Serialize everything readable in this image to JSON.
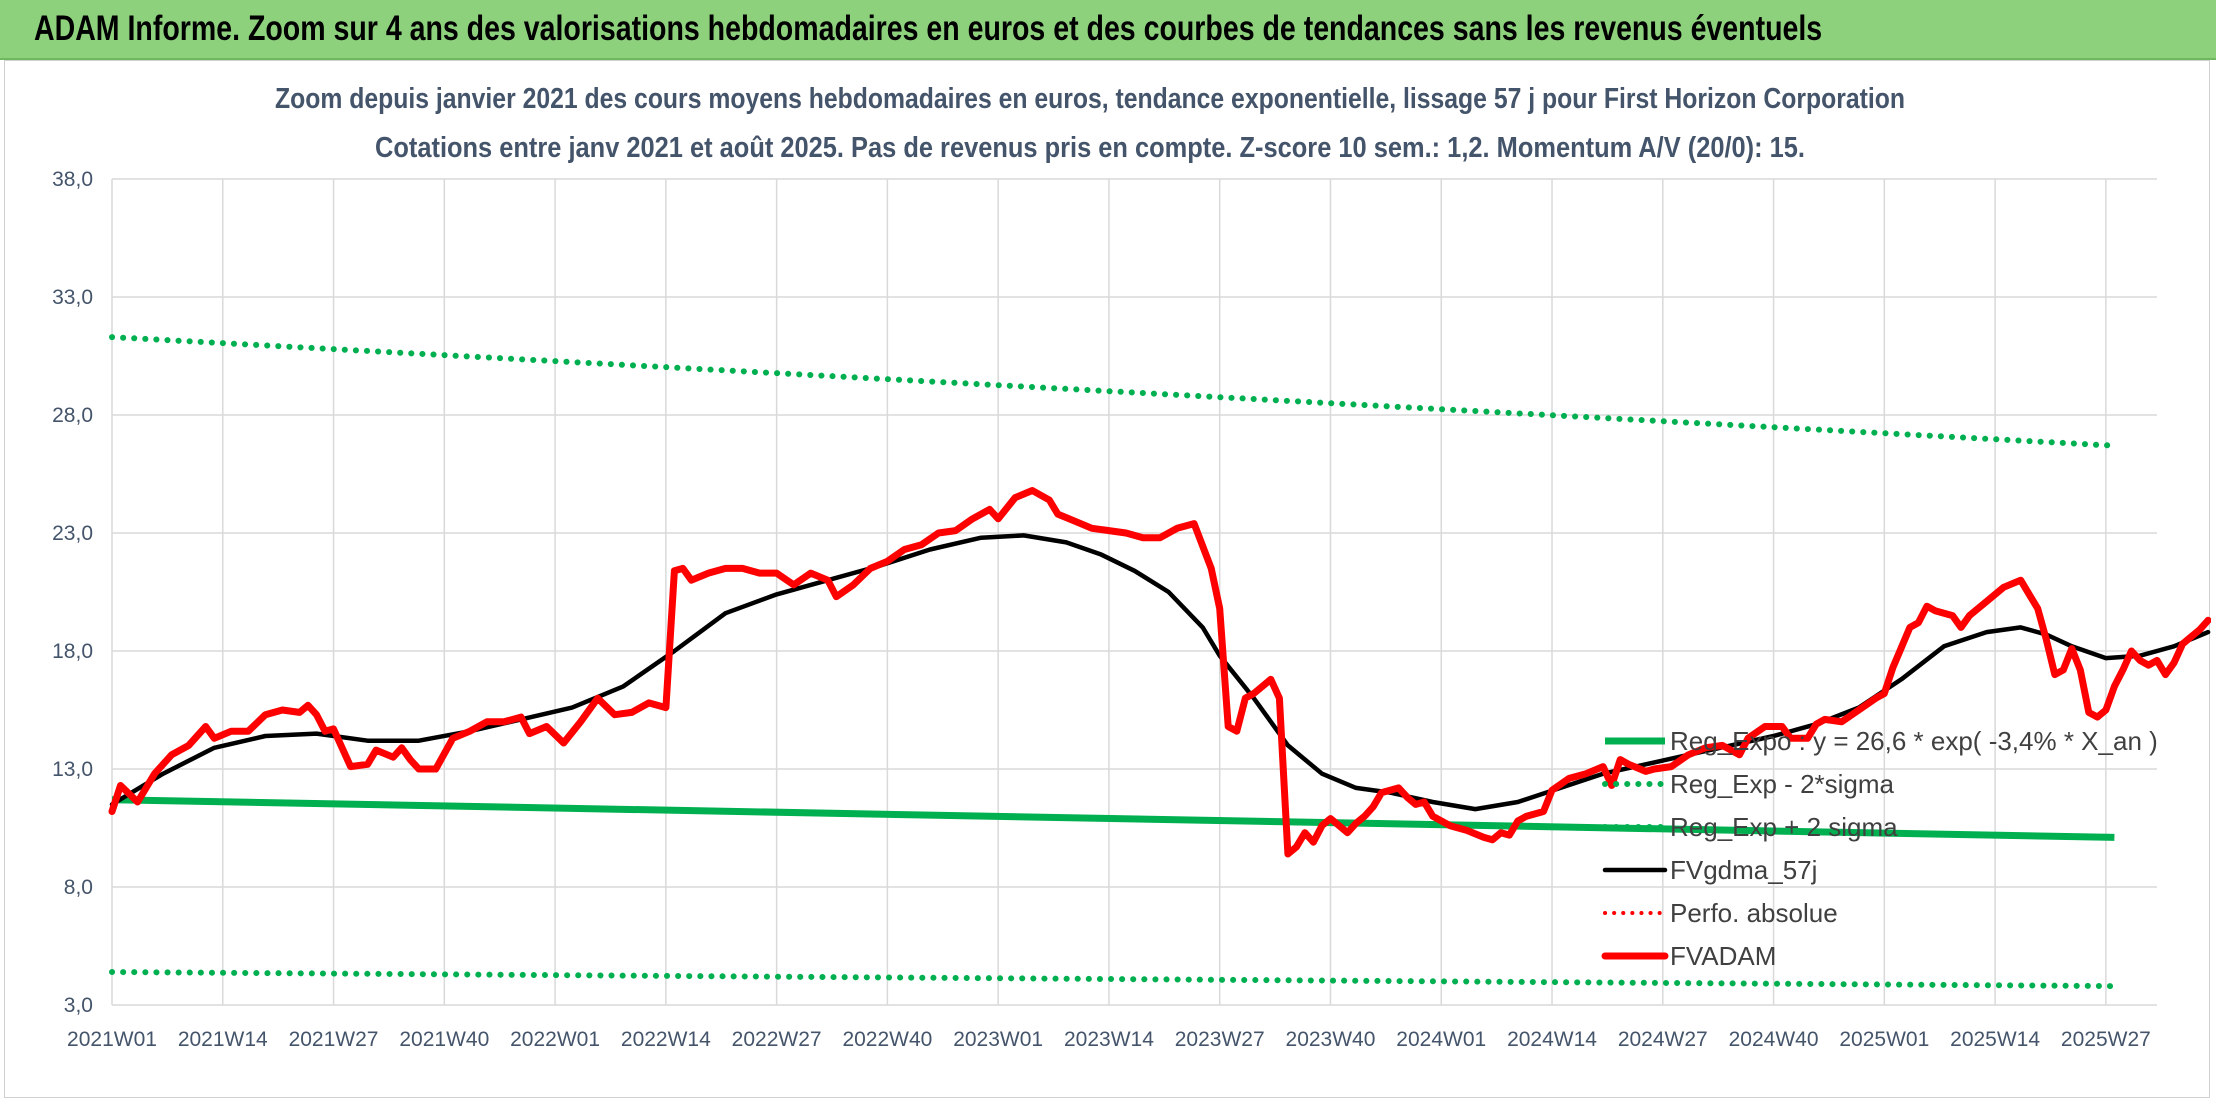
{
  "banner": {
    "title": "ADAM Informe. Zoom sur 4 ans des valorisations hebdomadaires en euros et des courbes de tendances sans les revenus éventuels"
  },
  "chart_data": {
    "type": "line",
    "title": "Zoom depuis janvier 2021 des cours moyens hebdomadaires en euros, tendance exponentielle, lissage 57 j pour First Horizon Corporation",
    "subtitle": "Cotations entre janv 2021 et août 2025. Pas de revenus pris en compte. Z-score 10 sem.: 1,2. Momentum A/V (20/0): 15.",
    "xlabel": "",
    "ylabel": "",
    "ylim": [
      3,
      38
    ],
    "ytick_labels": [
      "3,0",
      "8,0",
      "13,0",
      "18,0",
      "23,0",
      "28,0",
      "33,0",
      "38,0"
    ],
    "xtick_labels": [
      "2021W01",
      "2021W14",
      "2021W27",
      "2021W40",
      "2022W01",
      "2022W14",
      "2022W27",
      "2022W40",
      "2023W01",
      "2023W14",
      "2023W27",
      "2023W40",
      "2024W01",
      "2024W14",
      "2024W27",
      "2024W40",
      "2025W01",
      "2025W14",
      "2025W27"
    ],
    "grid": true,
    "legend_position": "bottom-right",
    "colors": {
      "reg_exp": "#00b050",
      "sigma": "#00b050",
      "fvgdma": "#000000",
      "perfo": "#ff0000",
      "fvadam": "#ff0000",
      "grid": "#d9d9d9",
      "text": "#44546a"
    },
    "series": [
      {
        "name": "Reg_Expo : y = 26,6 * exp( -3,4% *  X_an )",
        "style": "solid",
        "points": [
          [
            0,
            11.7
          ],
          [
            235,
            10.1
          ]
        ]
      },
      {
        "name": "Reg_Exp - 2*sigma",
        "style": "dotted",
        "points": [
          [
            0,
            4.4
          ],
          [
            235,
            3.8
          ]
        ]
      },
      {
        "name": "Reg_Exp + 2 sigma",
        "style": "dotted",
        "points": [
          [
            0,
            31.3
          ],
          [
            235,
            26.7
          ]
        ]
      },
      {
        "name": "FVgdma_57j",
        "style": "solid",
        "points": [
          [
            0,
            11.5
          ],
          [
            6,
            12.8
          ],
          [
            12,
            13.9
          ],
          [
            18,
            14.4
          ],
          [
            24,
            14.5
          ],
          [
            30,
            14.2
          ],
          [
            36,
            14.2
          ],
          [
            42,
            14.6
          ],
          [
            48,
            15.1
          ],
          [
            54,
            15.6
          ],
          [
            60,
            16.5
          ],
          [
            66,
            18.0
          ],
          [
            72,
            19.6
          ],
          [
            78,
            20.4
          ],
          [
            84,
            21.0
          ],
          [
            90,
            21.6
          ],
          [
            96,
            22.3
          ],
          [
            102,
            22.8
          ],
          [
            107,
            22.9
          ],
          [
            112,
            22.6
          ],
          [
            116,
            22.1
          ],
          [
            120,
            21.4
          ],
          [
            124,
            20.5
          ],
          [
            128,
            19.0
          ],
          [
            130,
            17.8
          ],
          [
            134,
            16.0
          ],
          [
            138,
            14.0
          ],
          [
            142,
            12.8
          ],
          [
            146,
            12.2
          ],
          [
            150,
            12.0
          ],
          [
            155,
            11.6
          ],
          [
            160,
            11.3
          ],
          [
            165,
            11.6
          ],
          [
            170,
            12.2
          ],
          [
            175,
            12.8
          ],
          [
            180,
            13.2
          ],
          [
            185,
            13.6
          ],
          [
            190,
            14.0
          ],
          [
            195,
            14.4
          ],
          [
            200,
            14.9
          ],
          [
            205,
            15.6
          ],
          [
            210,
            16.8
          ],
          [
            215,
            18.2
          ],
          [
            220,
            18.8
          ],
          [
            224,
            19.0
          ],
          [
            227,
            18.7
          ],
          [
            230,
            18.2
          ],
          [
            234,
            17.7
          ],
          [
            238,
            17.8
          ],
          [
            242,
            18.2
          ],
          [
            246,
            18.8
          ]
        ]
      },
      {
        "name": "Perfo. absolue",
        "style": "dotted",
        "points": []
      },
      {
        "name": "FVADAM",
        "style": "solid",
        "points": [
          [
            0,
            11.2
          ],
          [
            1,
            12.3
          ],
          [
            3,
            11.6
          ],
          [
            5,
            12.8
          ],
          [
            7,
            13.6
          ],
          [
            9,
            14.0
          ],
          [
            11,
            14.8
          ],
          [
            12,
            14.3
          ],
          [
            14,
            14.6
          ],
          [
            16,
            14.6
          ],
          [
            18,
            15.3
          ],
          [
            20,
            15.5
          ],
          [
            22,
            15.4
          ],
          [
            23,
            15.7
          ],
          [
            24,
            15.3
          ],
          [
            25,
            14.6
          ],
          [
            26,
            14.7
          ],
          [
            28,
            13.1
          ],
          [
            30,
            13.2
          ],
          [
            31,
            13.8
          ],
          [
            33,
            13.5
          ],
          [
            34,
            13.9
          ],
          [
            35,
            13.4
          ],
          [
            36,
            13.0
          ],
          [
            38,
            13.0
          ],
          [
            40,
            14.3
          ],
          [
            42,
            14.6
          ],
          [
            44,
            15.0
          ],
          [
            46,
            15.0
          ],
          [
            48,
            15.2
          ],
          [
            49,
            14.5
          ],
          [
            51,
            14.8
          ],
          [
            53,
            14.1
          ],
          [
            55,
            15.0
          ],
          [
            57,
            16.0
          ],
          [
            59,
            15.3
          ],
          [
            61,
            15.4
          ],
          [
            63,
            15.8
          ],
          [
            65,
            15.6
          ],
          [
            66,
            21.4
          ],
          [
            67,
            21.5
          ],
          [
            68,
            21.0
          ],
          [
            70,
            21.3
          ],
          [
            72,
            21.5
          ],
          [
            74,
            21.5
          ],
          [
            76,
            21.3
          ],
          [
            78,
            21.3
          ],
          [
            80,
            20.8
          ],
          [
            82,
            21.3
          ],
          [
            84,
            21.0
          ],
          [
            85,
            20.3
          ],
          [
            87,
            20.8
          ],
          [
            89,
            21.5
          ],
          [
            91,
            21.8
          ],
          [
            93,
            22.3
          ],
          [
            95,
            22.5
          ],
          [
            97,
            23.0
          ],
          [
            99,
            23.1
          ],
          [
            101,
            23.6
          ],
          [
            103,
            24.0
          ],
          [
            104,
            23.6
          ],
          [
            106,
            24.5
          ],
          [
            108,
            24.8
          ],
          [
            110,
            24.4
          ],
          [
            111,
            23.8
          ],
          [
            113,
            23.5
          ],
          [
            115,
            23.2
          ],
          [
            117,
            23.1
          ],
          [
            119,
            23.0
          ],
          [
            121,
            22.8
          ],
          [
            123,
            22.8
          ],
          [
            125,
            23.2
          ],
          [
            127,
            23.4
          ],
          [
            129,
            21.5
          ],
          [
            130,
            19.8
          ],
          [
            131,
            14.8
          ],
          [
            132,
            14.6
          ],
          [
            133,
            16.0
          ],
          [
            134,
            16.2
          ],
          [
            136,
            16.8
          ],
          [
            137,
            16.0
          ],
          [
            138,
            9.4
          ],
          [
            139,
            9.7
          ],
          [
            140,
            10.3
          ],
          [
            141,
            9.9
          ],
          [
            142,
            10.6
          ],
          [
            143,
            10.9
          ],
          [
            144,
            10.6
          ],
          [
            145,
            10.3
          ],
          [
            146,
            10.7
          ],
          [
            147,
            11.0
          ],
          [
            148,
            11.4
          ],
          [
            149,
            12.0
          ],
          [
            151,
            12.2
          ],
          [
            152,
            11.8
          ],
          [
            153,
            11.5
          ],
          [
            154,
            11.6
          ],
          [
            155,
            11.0
          ],
          [
            157,
            10.6
          ],
          [
            159,
            10.4
          ],
          [
            161,
            10.1
          ],
          [
            162,
            10.0
          ],
          [
            163,
            10.3
          ],
          [
            164,
            10.2
          ],
          [
            165,
            10.8
          ],
          [
            166,
            11.0
          ],
          [
            168,
            11.2
          ],
          [
            169,
            12.1
          ],
          [
            171,
            12.6
          ],
          [
            173,
            12.8
          ],
          [
            175,
            13.1
          ],
          [
            176,
            12.3
          ],
          [
            177,
            13.4
          ],
          [
            178,
            13.2
          ],
          [
            180,
            12.9
          ],
          [
            181,
            13.0
          ],
          [
            183,
            13.1
          ],
          [
            185,
            13.6
          ],
          [
            187,
            13.9
          ],
          [
            189,
            14.0
          ],
          [
            191,
            13.6
          ],
          [
            192,
            14.3
          ],
          [
            194,
            14.8
          ],
          [
            196,
            14.8
          ],
          [
            197,
            14.3
          ],
          [
            199,
            14.3
          ],
          [
            200,
            14.9
          ],
          [
            201,
            15.1
          ],
          [
            203,
            15.0
          ],
          [
            205,
            15.5
          ],
          [
            207,
            16.0
          ],
          [
            208,
            16.2
          ],
          [
            209,
            17.3
          ],
          [
            211,
            19.0
          ],
          [
            212,
            19.2
          ],
          [
            213,
            19.9
          ],
          [
            214,
            19.7
          ],
          [
            216,
            19.5
          ],
          [
            217,
            19.0
          ],
          [
            218,
            19.5
          ],
          [
            220,
            20.1
          ],
          [
            222,
            20.7
          ],
          [
            224,
            21.0
          ],
          [
            225,
            20.4
          ],
          [
            226,
            19.8
          ],
          [
            227,
            18.5
          ],
          [
            228,
            17.0
          ],
          [
            229,
            17.2
          ],
          [
            230,
            18.1
          ],
          [
            231,
            17.2
          ],
          [
            232,
            15.4
          ],
          [
            233,
            15.2
          ],
          [
            234,
            15.5
          ],
          [
            235,
            16.5
          ],
          [
            236,
            17.2
          ],
          [
            237,
            18.0
          ],
          [
            238,
            17.6
          ],
          [
            239,
            17.4
          ],
          [
            240,
            17.6
          ],
          [
            241,
            17.0
          ],
          [
            242,
            17.5
          ],
          [
            243,
            18.3
          ],
          [
            244,
            18.6
          ],
          [
            245,
            18.9
          ],
          [
            246,
            19.3
          ]
        ]
      }
    ]
  }
}
